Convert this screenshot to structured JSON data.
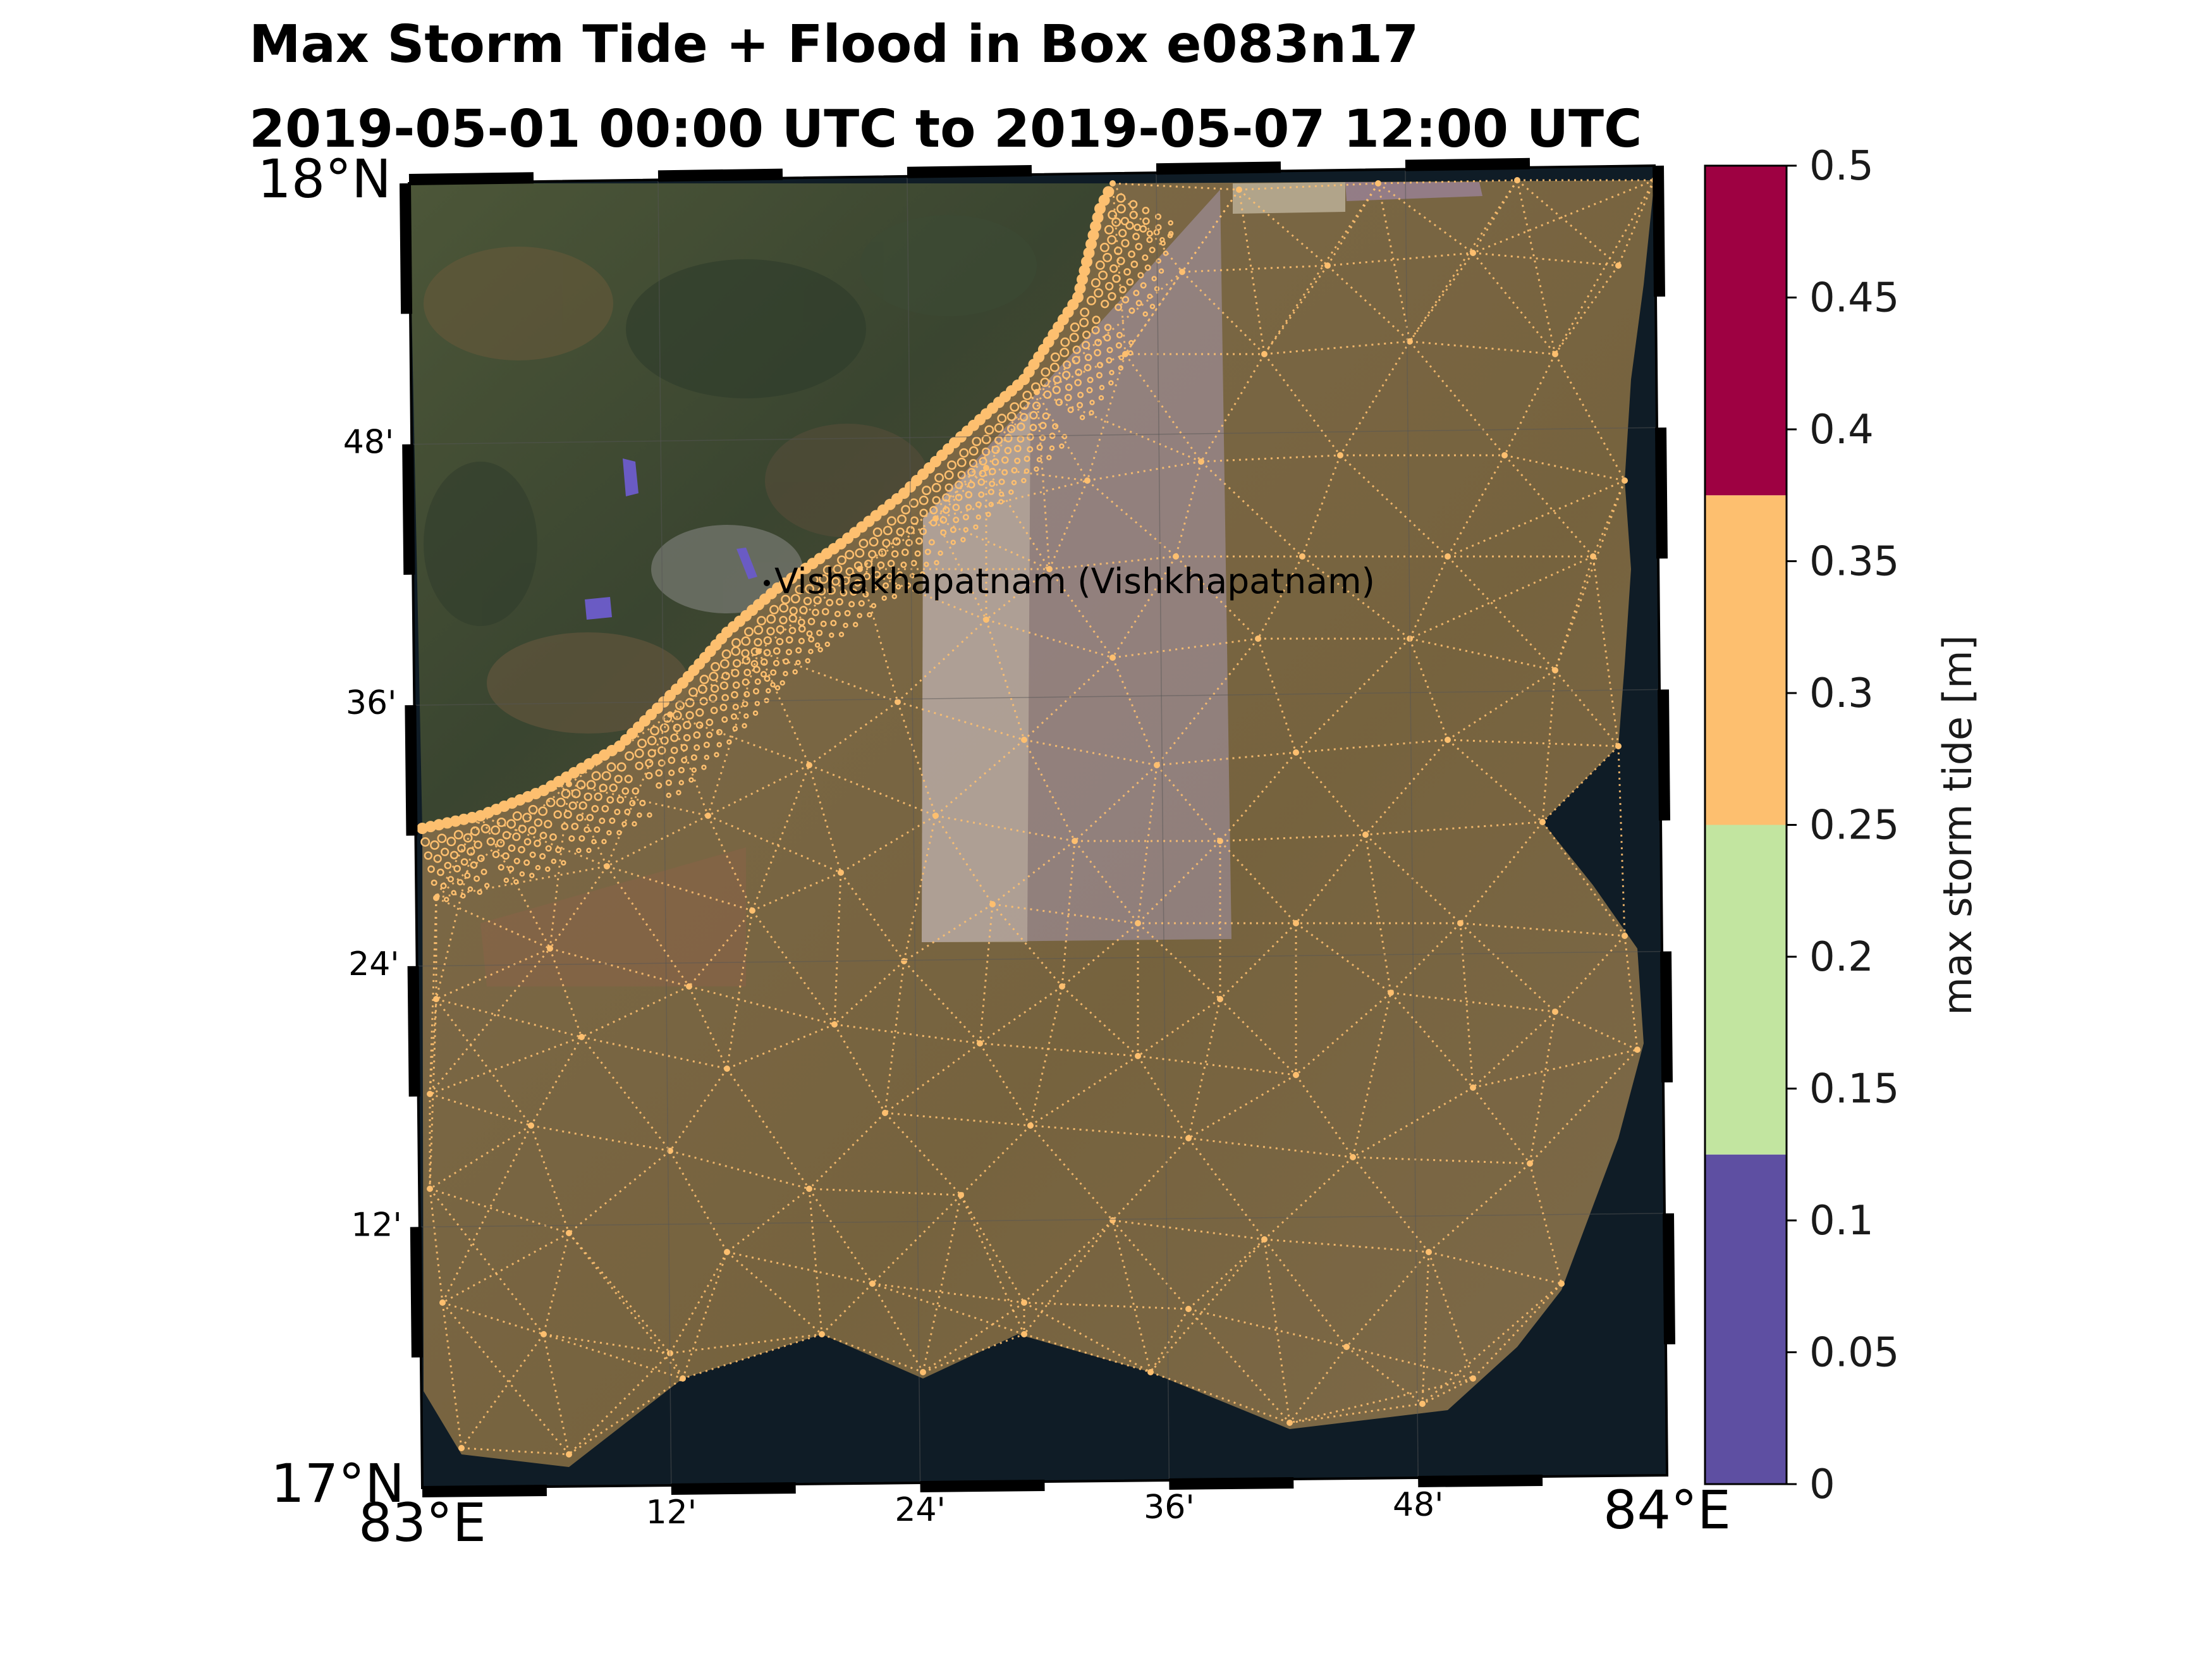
{
  "title": {
    "line1": "Max Storm Tide + Flood in Box e083n17",
    "line2": "2019-05-01 00:00 UTC to 2019-05-07 12:00 UTC"
  },
  "map": {
    "lat_labels": [
      {
        "text": "18°N",
        "major": true
      },
      {
        "text": "48'",
        "major": false
      },
      {
        "text": "36'",
        "major": false
      },
      {
        "text": "24'",
        "major": false
      },
      {
        "text": "12'",
        "major": false
      },
      {
        "text": "17°N",
        "major": true
      }
    ],
    "lon_labels": [
      {
        "text": "83°E",
        "major": true
      },
      {
        "text": "12'",
        "major": false
      },
      {
        "text": "24'",
        "major": false
      },
      {
        "text": "36'",
        "major": false
      },
      {
        "text": "48'",
        "major": false
      },
      {
        "text": "84°E",
        "major": true
      }
    ],
    "place_label": "Vishakhapatnam (Vishkhapatnam)",
    "mesh_color": "#fdbf6f",
    "land_color": "#3f4a30",
    "sea_color": "#0f1c26"
  },
  "colorbar": {
    "label": "max storm tide [m]",
    "ticks": [
      "0",
      "0.05",
      "0.1",
      "0.15",
      "0.2",
      "0.25",
      "0.3",
      "0.35",
      "0.4",
      "0.45",
      "0.5"
    ],
    "bins": [
      {
        "from": 0,
        "to": 0.125,
        "color": "#5e4fa2"
      },
      {
        "from": 0.125,
        "to": 0.25,
        "color": "#c2e5a0"
      },
      {
        "from": 0.25,
        "to": 0.375,
        "color": "#fdbf6f"
      },
      {
        "from": 0.375,
        "to": 0.5,
        "color": "#9e0142"
      }
    ]
  }
}
